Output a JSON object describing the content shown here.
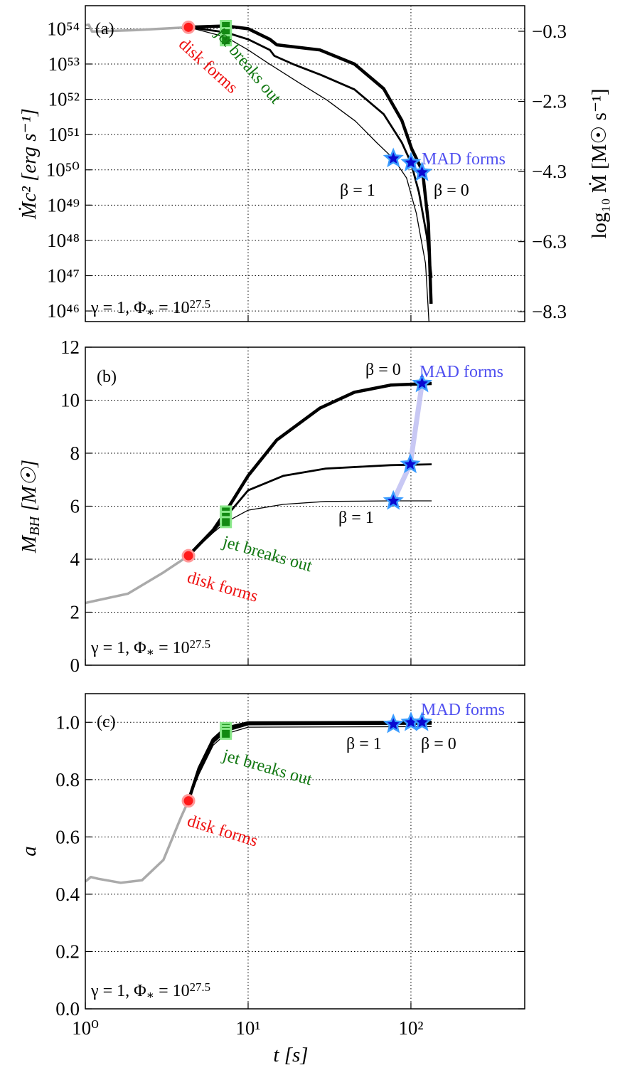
{
  "chart_data": [
    {
      "type": "line",
      "xscale": "log",
      "yscale": "log",
      "grid": true,
      "xtick_labels": false,
      "xlim": [
        1,
        500
      ],
      "xticks": [
        1,
        10,
        100
      ],
      "ylim": [
        5e+45,
        4.5e+54
      ],
      "yticks": [
        {
          "value": 1e+46,
          "label": "10⁴⁶"
        },
        {
          "value": 1e+47,
          "label": "10⁴⁷"
        },
        {
          "value": 1e+48,
          "label": "10⁴⁸"
        },
        {
          "value": 1e+49,
          "label": "10⁴⁹"
        },
        {
          "value": 1e+50,
          "label": "10⁵⁰"
        },
        {
          "value": 1e+51,
          "label": "10⁵¹"
        },
        {
          "value": 1e+52,
          "label": "10⁵²"
        },
        {
          "value": 1e+53,
          "label": "10⁵³"
        },
        {
          "value": 1e+54,
          "label": "10⁵⁴"
        }
      ],
      "y2lim": [
        -8.58,
        0.43
      ],
      "y2ticks": [
        {
          "value": -8.3,
          "label": "−8.3"
        },
        {
          "value": -6.3,
          "label": "−6.3"
        },
        {
          "value": -4.3,
          "label": "−4.3"
        },
        {
          "value": -2.3,
          "label": "−2.3"
        },
        {
          "value": -0.3,
          "label": "−0.3"
        }
      ],
      "ylabel": "Ṁc² [erg s⁻¹]",
      "y2label": "log₁₀ Ṁ [M☉ s⁻¹]",
      "series": [
        {
          "color": "#aaaaaa",
          "x": [
            1,
            1.05,
            1.1,
            2,
            4.3
          ],
          "values": [
            1.26e+54,
            1.3e+54,
            8.3e+53,
            9.1e+53,
            1.1e+54
          ]
        },
        {
          "color": "#000000",
          "x": [
            4.3,
            7.3,
            10,
            13.6,
            15,
            27.6,
            45,
            68,
            88,
            101,
            118,
            128,
            133
          ],
          "values": [
            1.1e+54,
            1.2e+54,
            1e+54,
            5e+53,
            3.5e+53,
            2.5e+53,
            1e+53,
            2e+52,
            2.5e+51,
            4e+50,
            9e+49,
            3e+48,
            1.6e+46
          ]
        },
        {
          "color": "#000000",
          "x": [
            4.3,
            7.3,
            10,
            13.6,
            14.5,
            19,
            28,
            45,
            68,
            88,
            100,
            112,
            125,
            134
          ],
          "values": [
            1.1e+54,
            7.9e+53,
            5e+53,
            2.5e+53,
            1.7e+53,
            9.8e+52,
            4.9e+52,
            1.9e+52,
            3.8e+51,
            5.9e+50,
            1.6e+50,
            2.3e+49,
            1.4e+48,
            8.7e+46
          ]
        },
        {
          "color": "#000000",
          "x": [
            4.3,
            7.3,
            10,
            13.6,
            20.4,
            30.5,
            45.6,
            61.6,
            78,
            94,
            108,
            123,
            129
          ],
          "values": [
            1.1e+54,
            5.8e+53,
            2.5e+53,
            9.8e+52,
            3e+52,
            9.5e+51,
            2.4e+51,
            5.9e+50,
            2.1e+50,
            5.9e+49,
            5.8e+48,
            2.2e+47,
            5e+45
          ]
        },
        {
          "marker": "circle",
          "color": "#ff1a1a",
          "edgecolor": "#ff9a9a",
          "x": [
            4.3
          ],
          "values": [
            1.1e+54
          ]
        },
        {
          "marker": "square",
          "color": "#128a12",
          "edgecolor": "#8ae88a",
          "x": [
            7.3,
            7.3,
            7.3
          ],
          "values": [
            1.2e+54,
            7.5e+53,
            4.7e+53
          ]
        },
        {
          "marker": "star",
          "color": "#0a0ad0",
          "edgecolor": "#3a9cff",
          "x": [
            78,
            100,
            117
          ],
          "values": [
            2.1e+50,
            1.6e+50,
            8.5e+49
          ]
        }
      ],
      "annotations": {
        "panel": "(a)",
        "disk": "disk forms",
        "jet": "jet breaks out",
        "mad": "MAD forms",
        "beta1": "β = 1",
        "beta0": "β = 0",
        "params": [
          {
            "text": "γ = 1,  Φ"
          },
          {
            "text": "∗",
            "shift": "sub"
          },
          {
            "text": " = 10"
          },
          {
            "text": "27.5",
            "shift": "sup"
          }
        ]
      }
    },
    {
      "type": "line",
      "xscale": "log",
      "yscale": "linear",
      "grid": true,
      "xtick_labels": false,
      "xlim": [
        1,
        500
      ],
      "xticks": [
        1,
        10,
        100
      ],
      "ylim": [
        0,
        12
      ],
      "yticks": [
        0,
        2,
        4,
        6,
        8,
        10,
        12
      ],
      "ylabel": [
        {
          "text": "M"
        },
        {
          "text": "BH",
          "shift": "sub"
        },
        {
          "text": " [M☉]"
        }
      ],
      "series": [
        {
          "color": "#aaaaaa",
          "x": [
            1,
            1.83,
            3.02,
            4.3
          ],
          "values": [
            2.35,
            2.7,
            3.5,
            4.13
          ]
        },
        {
          "color": "#000000",
          "x": [
            4.3,
            6.1,
            7.3,
            10,
            15,
            27.6,
            45,
            75,
            134
          ],
          "values": [
            4.13,
            5.1,
            5.8,
            7.15,
            8.5,
            9.7,
            10.3,
            10.57,
            10.63
          ]
        },
        {
          "color": "#000000",
          "x": [
            4.3,
            6.1,
            7.3,
            10,
            16.5,
            30,
            75,
            134
          ],
          "values": [
            4.13,
            5.05,
            5.6,
            6.6,
            7.15,
            7.42,
            7.55,
            7.58
          ]
        },
        {
          "color": "#000000",
          "x": [
            4.3,
            6.1,
            7.3,
            10,
            16.5,
            30,
            75,
            134
          ],
          "values": [
            4.13,
            5.0,
            5.4,
            5.85,
            6.07,
            6.18,
            6.2,
            6.2
          ]
        },
        {
          "marker": "circle",
          "color": "#ff1a1a",
          "edgecolor": "#ff9a9a",
          "x": [
            4.3
          ],
          "values": [
            4.13
          ]
        },
        {
          "marker": "square",
          "color": "#128a12",
          "edgecolor": "#8ae88a",
          "x": [
            7.3,
            7.3,
            7.3
          ],
          "values": [
            5.8,
            5.6,
            5.4
          ]
        },
        {
          "marker": "star",
          "color": "#0a0ad0",
          "edgecolor": "#3a9cff",
          "connect": true,
          "linecolor": "#c8c8f4",
          "x": [
            78,
            99,
            117
          ],
          "values": [
            6.2,
            7.58,
            10.63
          ]
        }
      ],
      "annotations": {
        "panel": "(b)",
        "disk": "disk forms",
        "jet": "jet breaks out",
        "mad": "MAD forms",
        "beta1": "β = 1",
        "beta0": "β = 0",
        "params": [
          {
            "text": "γ = 1,  Φ"
          },
          {
            "text": "∗",
            "shift": "sub"
          },
          {
            "text": " = 10"
          },
          {
            "text": "27.5",
            "shift": "sup"
          }
        ]
      }
    },
    {
      "type": "line",
      "xscale": "log",
      "yscale": "linear",
      "grid": true,
      "xtick_labels": true,
      "xlim": [
        1,
        500
      ],
      "xticks": [
        {
          "value": 1,
          "label": "10⁰"
        },
        {
          "value": 10,
          "label": "10¹"
        },
        {
          "value": 100,
          "label": "10²"
        }
      ],
      "ylim": [
        0,
        1.1
      ],
      "yticks": [
        {
          "value": 0,
          "label": "0.0"
        },
        0.2,
        0.4,
        0.6,
        0.8,
        {
          "value": 1,
          "label": "1.0"
        }
      ],
      "ylabel": "a",
      "xlabel": "t [s]",
      "series": [
        {
          "color": "#aaaaaa",
          "x": [
            1,
            1.08,
            1.2,
            1.65,
            2.23,
            3.02,
            3.88,
            4.3
          ],
          "values": [
            0.444,
            0.46,
            0.454,
            0.44,
            0.449,
            0.52,
            0.67,
            0.726
          ]
        },
        {
          "color": "#000000",
          "x": [
            4.3,
            5,
            6.1,
            7.3,
            10,
            134
          ],
          "values": [
            0.726,
            0.84,
            0.94,
            0.98,
            0.998,
            1.0
          ]
        },
        {
          "color": "#000000",
          "x": [
            4.3,
            5,
            6.1,
            7.3,
            10,
            134
          ],
          "values": [
            0.726,
            0.83,
            0.93,
            0.97,
            0.993,
            0.995
          ]
        },
        {
          "color": "#000000",
          "x": [
            4.3,
            5,
            6.1,
            7.3,
            10,
            134
          ],
          "values": [
            0.726,
            0.82,
            0.92,
            0.96,
            0.983,
            0.985
          ]
        },
        {
          "marker": "circle",
          "color": "#ff1a1a",
          "edgecolor": "#ff9a9a",
          "x": [
            4.3
          ],
          "values": [
            0.726
          ]
        },
        {
          "marker": "square",
          "color": "#128a12",
          "edgecolor": "#8ae88a",
          "x": [
            7.3,
            7.3,
            7.3
          ],
          "values": [
            0.98,
            0.97,
            0.96
          ]
        },
        {
          "marker": "star",
          "color": "#0a0ad0",
          "edgecolor": "#3a9cff",
          "x": [
            78,
            100,
            117
          ],
          "values": [
            0.993,
            1.0,
            1.0
          ]
        }
      ],
      "annotations": {
        "panel": "(c)",
        "disk": "disk forms",
        "jet": "jet breaks out",
        "mad": "MAD forms",
        "beta1": "β = 1",
        "beta0": "β = 0",
        "params": [
          {
            "text": "γ = 1,  Φ"
          },
          {
            "text": "∗",
            "shift": "sub"
          },
          {
            "text": " = 10"
          },
          {
            "text": "27.5",
            "shift": "sup"
          }
        ]
      }
    }
  ]
}
